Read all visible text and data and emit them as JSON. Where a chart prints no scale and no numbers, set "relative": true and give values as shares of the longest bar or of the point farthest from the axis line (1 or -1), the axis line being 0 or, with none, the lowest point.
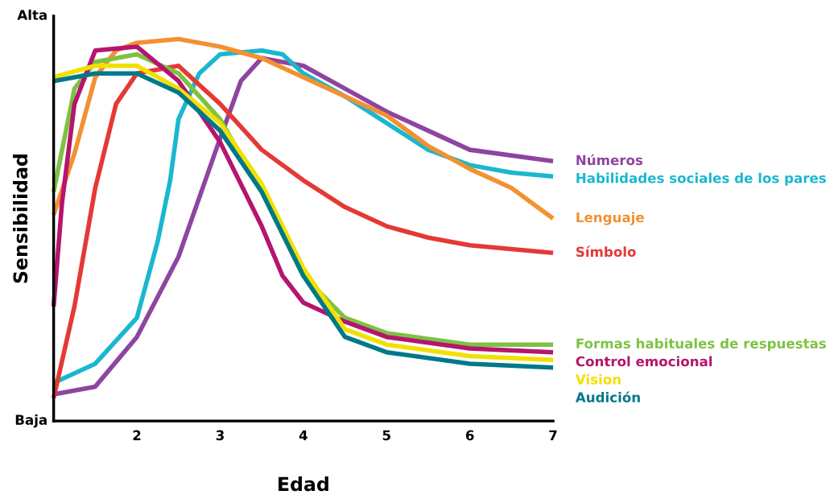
{
  "chart_data": {
    "type": "line",
    "xlabel": "Edad",
    "ylabel": "Sensibilidad",
    "relative": true,
    "annotations": [
      "Alta",
      "Baja"
    ],
    "xlim": [
      1,
      7
    ],
    "xticks": [
      2,
      3,
      4,
      5,
      6,
      7
    ],
    "grid": false,
    "legend": false,
    "marker": "none",
    "line_style": "solid",
    "tick_labels": "x",
    "series": [
      {
        "name": "Números",
        "color": "#8e44a0",
        "x": [
          1,
          1.5,
          2,
          2.5,
          3,
          3.25,
          3.5,
          4,
          4.5,
          5,
          5.5,
          6,
          7
        ],
        "values": [
          0.07,
          0.09,
          0.22,
          0.43,
          0.74,
          0.89,
          0.95,
          0.93,
          0.87,
          0.81,
          0.76,
          0.71,
          0.68
        ]
      },
      {
        "name": "Habilidades sociales de los pares",
        "color": "#1ab7cf",
        "x": [
          1,
          1.5,
          2,
          2.25,
          2.4,
          2.5,
          2.75,
          3,
          3.5,
          3.75,
          4,
          4.5,
          5,
          5.5,
          6,
          6.5,
          7
        ],
        "values": [
          0.1,
          0.15,
          0.27,
          0.47,
          0.63,
          0.79,
          0.91,
          0.96,
          0.97,
          0.96,
          0.91,
          0.85,
          0.78,
          0.71,
          0.67,
          0.65,
          0.64
        ]
      },
      {
        "name": "Lenguaje",
        "color": "#f39131",
        "x": [
          1,
          1.25,
          1.5,
          1.75,
          2,
          2.5,
          3,
          3.5,
          4,
          4.5,
          5,
          5.5,
          6,
          6.5,
          7
        ],
        "values": [
          0.54,
          0.7,
          0.9,
          0.97,
          0.99,
          1,
          0.98,
          0.95,
          0.9,
          0.85,
          0.8,
          0.72,
          0.66,
          0.61,
          0.53
        ]
      },
      {
        "name": "Símbolo",
        "color": "#e53935",
        "x": [
          1,
          1.25,
          1.5,
          1.75,
          2,
          2.5,
          3,
          3.5,
          4,
          4.5,
          5,
          5.5,
          6,
          7
        ],
        "values": [
          0.06,
          0.3,
          0.61,
          0.83,
          0.91,
          0.93,
          0.83,
          0.71,
          0.63,
          0.56,
          0.51,
          0.48,
          0.46,
          0.44
        ]
      },
      {
        "name": "Formas habituales de respuestas",
        "color": "#7dc242",
        "x": [
          1,
          1.25,
          1.5,
          2,
          2.5,
          3,
          3.5,
          4,
          4.5,
          5,
          6,
          7
        ],
        "values": [
          0.6,
          0.87,
          0.94,
          0.96,
          0.91,
          0.79,
          0.6,
          0.38,
          0.27,
          0.23,
          0.2,
          0.2
        ]
      },
      {
        "name": "Control emocional",
        "color": "#b5156e",
        "x": [
          1,
          1.1,
          1.25,
          1.5,
          2,
          2.5,
          3,
          3.5,
          3.75,
          4,
          4.5,
          5,
          6,
          7
        ],
        "values": [
          0.3,
          0.57,
          0.83,
          0.97,
          0.98,
          0.89,
          0.73,
          0.51,
          0.38,
          0.31,
          0.26,
          0.22,
          0.19,
          0.18
        ]
      },
      {
        "name": "Vision",
        "color": "#f2e000",
        "x": [
          1,
          1.5,
          2,
          2.5,
          3,
          3.5,
          4,
          4.5,
          5,
          6,
          7
        ],
        "values": [
          0.9,
          0.93,
          0.93,
          0.87,
          0.78,
          0.62,
          0.4,
          0.24,
          0.2,
          0.17,
          0.16
        ]
      },
      {
        "name": "Audición",
        "color": "#00788a",
        "x": [
          1,
          1.5,
          2,
          2.5,
          3,
          3.5,
          4,
          4.5,
          5,
          6,
          7
        ],
        "values": [
          0.89,
          0.91,
          0.91,
          0.86,
          0.76,
          0.6,
          0.38,
          0.22,
          0.18,
          0.15,
          0.14
        ]
      }
    ]
  }
}
